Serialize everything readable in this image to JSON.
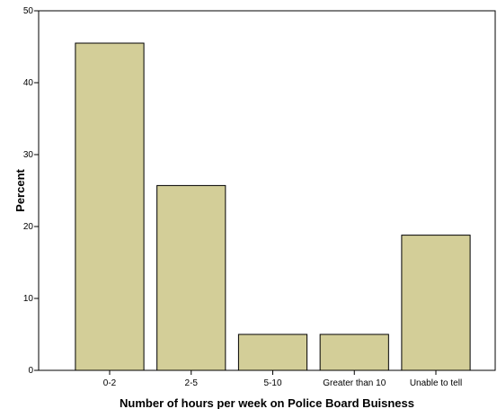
{
  "chart_data": {
    "type": "bar",
    "categories": [
      "0-2",
      "2-5",
      "5-10",
      "Greater than 10",
      "Unable to tell"
    ],
    "values": [
      45.5,
      25.7,
      5.0,
      5.0,
      18.8
    ],
    "xlabel": "Number of hours per week on Police Board Buisness",
    "ylabel": "Percent",
    "ylim": [
      0,
      50
    ],
    "yticks": [
      0,
      10,
      20,
      30,
      40,
      50
    ],
    "grid": false,
    "bar_color": "#d3ce98",
    "bar_edge_color": "#000000",
    "background_color": "#ffffff"
  }
}
